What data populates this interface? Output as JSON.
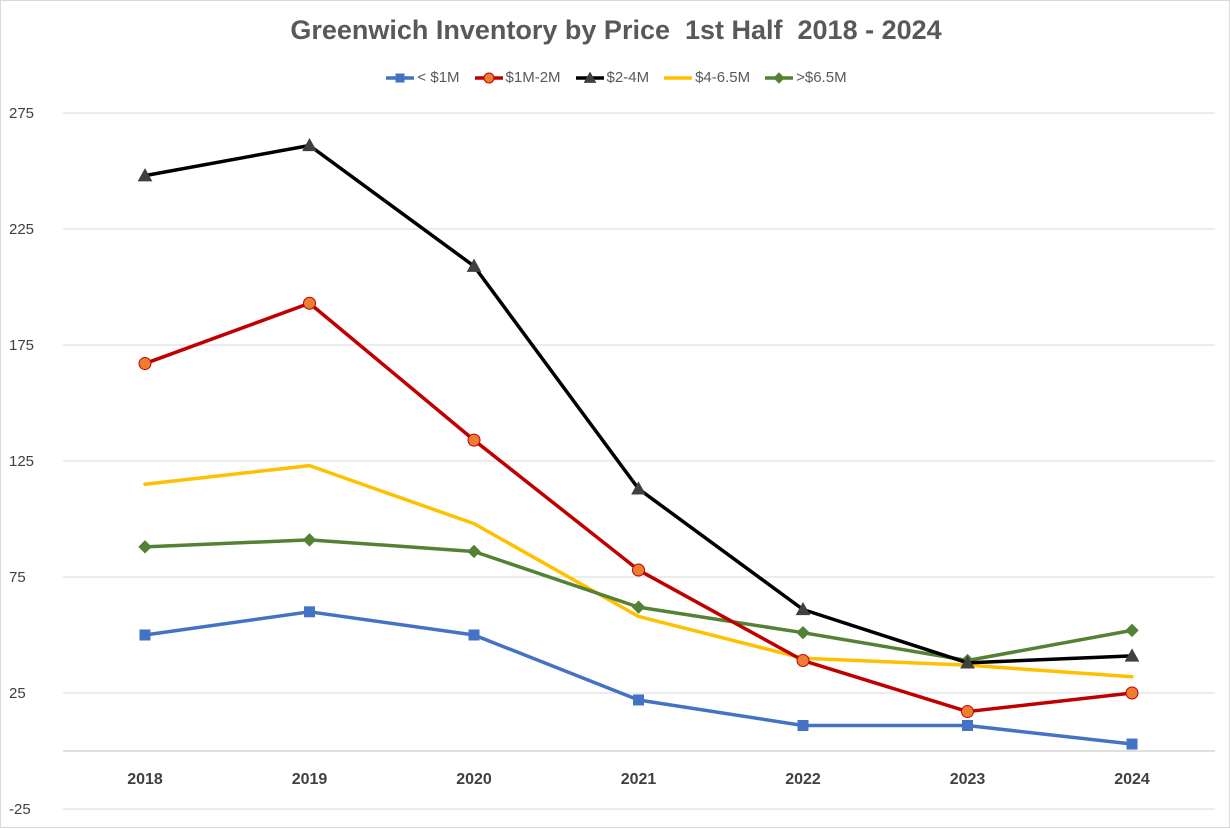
{
  "chart_data": {
    "type": "line",
    "title": "Greenwich Inventory by Price  1st Half  2018 - 2024",
    "xlabel": "",
    "ylabel": "",
    "categories": [
      "2018",
      "2019",
      "2020",
      "2021",
      "2022",
      "2023",
      "2024"
    ],
    "ylim": [
      -25,
      275
    ],
    "y_ticks": [
      -25,
      25,
      75,
      125,
      175,
      225,
      275
    ],
    "grid": true,
    "legend_position": "top",
    "series": [
      {
        "name": "< $1M",
        "color": "#4472c4",
        "marker": "square",
        "values": [
          50,
          60,
          50,
          22,
          11,
          11,
          3
        ]
      },
      {
        "name": "$1M-2M",
        "color": "#c00000",
        "marker": "circle",
        "marker_fill": "#ed7d31",
        "values": [
          167,
          193,
          134,
          78,
          39,
          17,
          25
        ]
      },
      {
        "name": "$2-4M",
        "color": "#000000",
        "marker": "triangle",
        "marker_fill": "#404040",
        "values": [
          248,
          261,
          209,
          113,
          61,
          38,
          41
        ]
      },
      {
        "name": "$4-6.5M",
        "color": "#ffc000",
        "marker": "none",
        "values": [
          115,
          123,
          98,
          58,
          40,
          37,
          32
        ]
      },
      {
        "name": ">$6.5M",
        "color": "#548235",
        "marker": "diamond",
        "values": [
          88,
          91,
          86,
          62,
          51,
          39,
          52
        ]
      }
    ]
  }
}
